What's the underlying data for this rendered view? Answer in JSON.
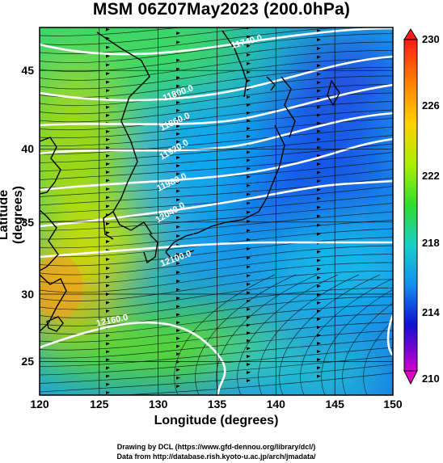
{
  "title": "MSM 06Z07May2023 (200.0hPa)",
  "axes": {
    "xlabel": "Longitude (degrees)",
    "ylabel": "Latitude  (degrees)",
    "x_ticks": [
      "120",
      "125",
      "130",
      "135",
      "140",
      "145",
      "150"
    ],
    "y_ticks": [
      "25",
      "30",
      "35",
      "40",
      "45"
    ]
  },
  "colorbar": {
    "labels": [
      "230",
      "226",
      "222",
      "218",
      "214",
      "210"
    ],
    "colors": [
      "#ff2020",
      "#ff9a00",
      "#d8f000",
      "#30dc30",
      "#20c8d8",
      "#1470f0",
      "#1010c8",
      "#d000d0"
    ]
  },
  "contour_labels": [
    "11740.0",
    "11800.0",
    "11860.0",
    "11920.0",
    "11980.0",
    "12040.0",
    "12100.0",
    "12160.0",
    "12160.0"
  ],
  "credits": {
    "line1": "Drawing by DCL (https://www.gfd-dennou.org/library/dcl/)",
    "line2": "Data from http://database.rish.kyoto-u.ac.jp/arch/jmadata/"
  },
  "chart_data": {
    "type": "heatmap",
    "title": "MSM 06Z07May2023 (200.0hPa)",
    "xlabel": "Longitude (degrees)",
    "ylabel": "Latitude  (degrees)",
    "xlim": [
      120,
      150
    ],
    "ylim": [
      22.4,
      47.6
    ],
    "colorbar_range": [
      210,
      230
    ],
    "colorbar_ticks": [
      230,
      226,
      222,
      218,
      214,
      210
    ],
    "contour_levels": [
      11740,
      11800,
      11860,
      11920,
      11980,
      12040,
      12100,
      12160
    ],
    "field_samples": [
      {
        "lon": 122,
        "lat": 30,
        "value": 227
      },
      {
        "lon": 121,
        "lat": 40,
        "value": 222
      },
      {
        "lon": 125,
        "lat": 33,
        "value": 224
      },
      {
        "lon": 132,
        "lat": 45,
        "value": 220
      },
      {
        "lon": 128,
        "lat": 40,
        "value": 219
      },
      {
        "lon": 135,
        "lat": 40,
        "value": 215
      },
      {
        "lon": 145,
        "lat": 40,
        "value": 212
      },
      {
        "lon": 148,
        "lat": 45,
        "value": 213
      },
      {
        "lon": 140,
        "lat": 30,
        "value": 217
      },
      {
        "lon": 130,
        "lat": 26,
        "value": 221
      },
      {
        "lon": 145,
        "lat": 25,
        "value": 218
      },
      {
        "lon": 148,
        "lat": 33,
        "value": 217
      }
    ],
    "legend": "colorbar right"
  }
}
